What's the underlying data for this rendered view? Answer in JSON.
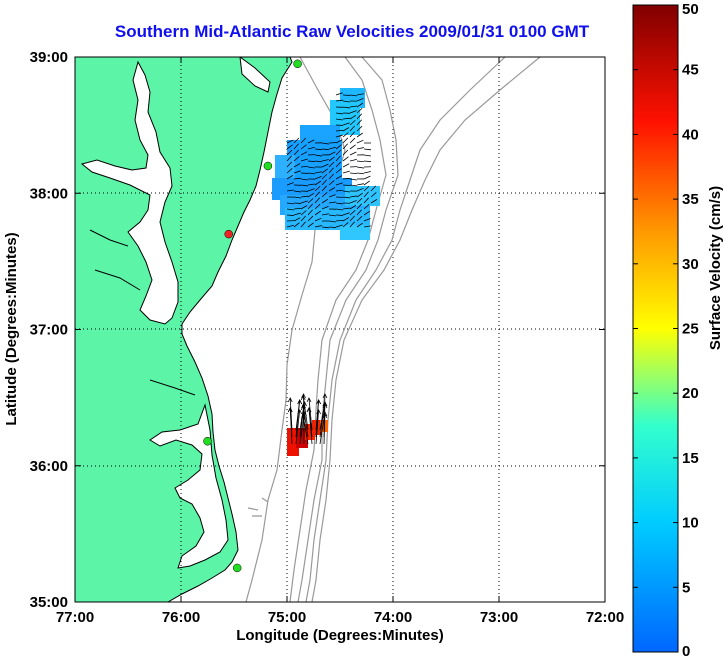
{
  "title": "Southern Mid-Atlantic Raw Velocities 2009/01/31 0100 GMT",
  "map": {
    "xlabel": "Longitude (Degrees:Minutes)",
    "ylabel": "Latitude (Degrees:Minutes)",
    "lon_range": [
      -77,
      -72
    ],
    "lat_range": [
      35,
      39
    ],
    "lon_ticks": [
      {
        "value": -77,
        "label": "77:00"
      },
      {
        "value": -76,
        "label": "76:00"
      },
      {
        "value": -75,
        "label": "75:00"
      },
      {
        "value": -74,
        "label": "74:00"
      },
      {
        "value": -73,
        "label": "73:00"
      },
      {
        "value": -72,
        "label": "72:00"
      }
    ],
    "lat_ticks": [
      {
        "value": 35,
        "label": "35:00"
      },
      {
        "value": 36,
        "label": "36:00"
      },
      {
        "value": 37,
        "label": "37:00"
      },
      {
        "value": 38,
        "label": "38:00"
      },
      {
        "value": 39,
        "label": "39:00"
      }
    ],
    "grid": "dotted",
    "colors": {
      "land": "#5cf5a8",
      "coastline": "#000000",
      "bathymetry": "#999999",
      "station_green": "#22dd22",
      "station_red": "#ee2222",
      "vectors": "#000000"
    },
    "stations": [
      {
        "lon": -74.9,
        "lat": 38.95,
        "color": "green"
      },
      {
        "lon": -75.18,
        "lat": 38.2,
        "color": "green"
      },
      {
        "lon": -75.55,
        "lat": 37.7,
        "color": "red"
      },
      {
        "lon": -75.75,
        "lat": 36.18,
        "color": "green"
      },
      {
        "lon": -75.47,
        "lat": 35.25,
        "color": "green"
      }
    ]
  },
  "colorbar": {
    "label": "Surface Velocity (cm/s)",
    "min": 0,
    "max": 50,
    "ticks": [
      {
        "value": 0,
        "label": "0"
      },
      {
        "value": 5,
        "label": "5"
      },
      {
        "value": 10,
        "label": "10"
      },
      {
        "value": 15,
        "label": "15"
      },
      {
        "value": 20,
        "label": "20"
      },
      {
        "value": 25,
        "label": "25"
      },
      {
        "value": 30,
        "label": "30"
      },
      {
        "value": 35,
        "label": "35"
      },
      {
        "value": 40,
        "label": "40"
      },
      {
        "value": 45,
        "label": "45"
      },
      {
        "value": 50,
        "label": "50"
      }
    ],
    "colormap": "jet"
  }
}
